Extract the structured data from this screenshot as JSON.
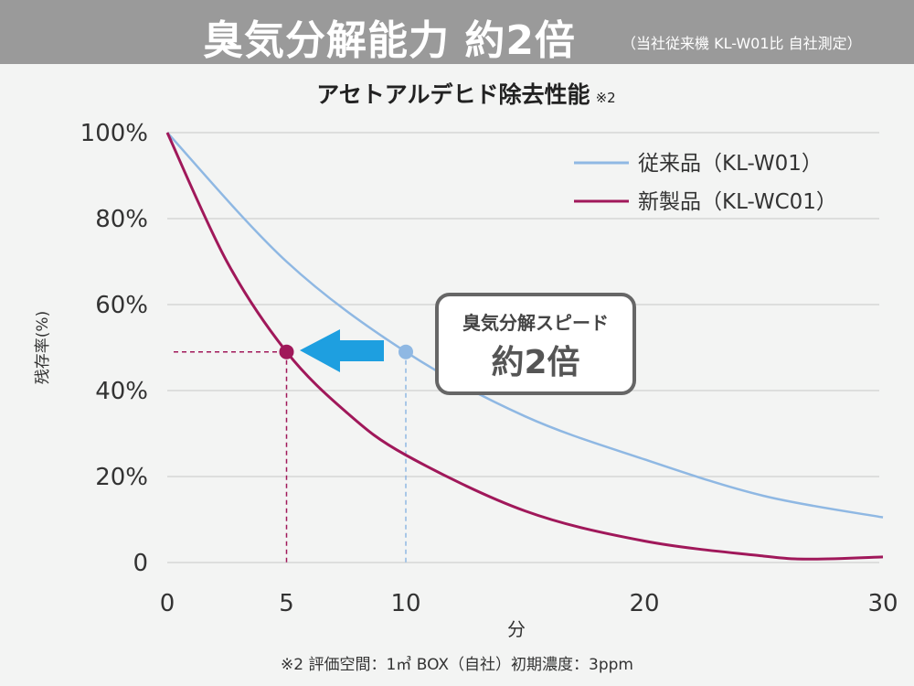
{
  "header": {
    "title": "臭気分解能力 約2倍",
    "subtitle": "（当社従来機 KL-W01比 自社測定）"
  },
  "footnote": "※2 評価空間：1㎥ BOX（自社）初期濃度：3ppm",
  "annotation": {
    "line1": "臭気分解スピード",
    "line2": "約2倍"
  },
  "colors": {
    "old": "#8fb8e3",
    "new": "#a0185a",
    "arrow": "#1e9fe0",
    "header": "#9a9a9a"
  },
  "chart_data": {
    "type": "line",
    "title": "アセトアルデヒド除去性能",
    "title_note": "※2",
    "xlabel": "分",
    "ylabel": "残存率(%)",
    "xlim": [
      0,
      30
    ],
    "ylim": [
      0,
      100
    ],
    "xticks": [
      "0",
      "5",
      "10",
      "20",
      "30"
    ],
    "yticks": [
      "0",
      "20%",
      "40%",
      "60%",
      "80%",
      "100%"
    ],
    "grid": "horizontal",
    "legend_position": "top-right",
    "series": [
      {
        "name": "従来品（KL-W01）",
        "x": [
          0,
          5,
          10,
          15,
          20,
          25,
          30
        ],
        "y": [
          100,
          70,
          49,
          34,
          24,
          15.5,
          10.5
        ]
      },
      {
        "name": "新製品（KL-WC01）",
        "x": [
          0,
          2.5,
          5,
          7.5,
          10,
          15,
          20,
          25,
          27,
          30
        ],
        "y": [
          100,
          70,
          49,
          35,
          25,
          12,
          5,
          1.5,
          0.8,
          1.3
        ]
      }
    ],
    "highlight_points": [
      {
        "series": 1,
        "x": 5,
        "y": 49
      },
      {
        "series": 0,
        "x": 10,
        "y": 49
      }
    ]
  }
}
